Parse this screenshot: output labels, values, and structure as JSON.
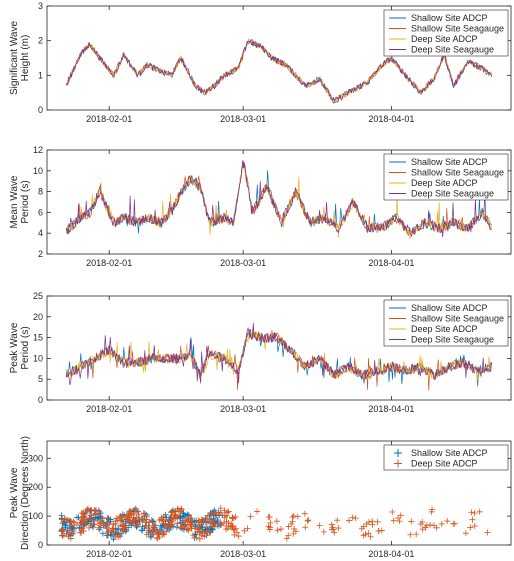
{
  "chart_data": [
    {
      "type": "line",
      "ylabel": [
        "Significant Wave",
        "Height (m)"
      ],
      "ylim": [
        0,
        3
      ],
      "yticks": [
        "0",
        "1",
        "2",
        "3"
      ],
      "xlim": [
        "2018-01-19",
        "2018-04-26"
      ],
      "xticks": [
        "2018-02-01",
        "2018-03-01",
        "2018-04-01"
      ],
      "legend": "top-right",
      "series": [
        {
          "name": "Shallow Site ADCP",
          "color": "#0072BD"
        },
        {
          "name": "Shallow Site Seagauge",
          "color": "#D95319"
        },
        {
          "name": "Deep Site ADCP",
          "color": "#EDB120"
        },
        {
          "name": "Deep Site Seagauge",
          "color": "#7E2F8E"
        }
      ],
      "x": [
        "2018-01-23",
        "2018-01-26",
        "2018-01-28",
        "2018-01-30",
        "2018-02-02",
        "2018-02-04",
        "2018-02-07",
        "2018-02-09",
        "2018-02-12",
        "2018-02-14",
        "2018-02-16",
        "2018-02-19",
        "2018-02-21",
        "2018-02-23",
        "2018-02-25",
        "2018-02-28",
        "2018-03-02",
        "2018-03-05",
        "2018-03-07",
        "2018-03-10",
        "2018-03-12",
        "2018-03-14",
        "2018-03-17",
        "2018-03-20",
        "2018-03-23",
        "2018-03-27",
        "2018-03-30",
        "2018-04-01",
        "2018-04-04",
        "2018-04-07",
        "2018-04-10",
        "2018-04-12",
        "2018-04-14",
        "2018-04-17",
        "2018-04-20",
        "2018-04-22"
      ],
      "y": [
        0.7,
        1.6,
        1.9,
        1.5,
        1.0,
        1.6,
        1.0,
        1.3,
        1.1,
        1.0,
        1.5,
        0.7,
        0.5,
        0.7,
        1.0,
        1.2,
        2.0,
        1.8,
        1.5,
        1.3,
        1.0,
        0.7,
        0.9,
        0.25,
        0.5,
        0.8,
        1.3,
        1.5,
        1.0,
        0.5,
        0.9,
        1.6,
        0.7,
        1.4,
        1.2,
        1.0
      ]
    },
    {
      "type": "line",
      "ylabel": [
        "Mean Wave",
        "Period (s)"
      ],
      "ylim": [
        2,
        12
      ],
      "yticks": [
        "2",
        "4",
        "6",
        "8",
        "10",
        "12"
      ],
      "xlim": [
        "2018-01-19",
        "2018-04-26"
      ],
      "xticks": [
        "2018-02-01",
        "2018-03-01",
        "2018-04-01"
      ],
      "legend": "top-right",
      "series": [
        {
          "name": "Shallow Site ADCP",
          "color": "#0072BD"
        },
        {
          "name": "Shallow Site Seagauge",
          "color": "#D95319"
        },
        {
          "name": "Deep Site ADCP",
          "color": "#EDB120"
        },
        {
          "name": "Deep Site Seagauge",
          "color": "#7E2F8E"
        }
      ],
      "x": [
        "2018-01-23",
        "2018-01-26",
        "2018-01-28",
        "2018-01-30",
        "2018-02-02",
        "2018-02-04",
        "2018-02-07",
        "2018-02-09",
        "2018-02-12",
        "2018-02-14",
        "2018-02-16",
        "2018-02-18",
        "2018-02-20",
        "2018-02-22",
        "2018-02-25",
        "2018-02-27",
        "2018-03-01",
        "2018-03-03",
        "2018-03-06",
        "2018-03-09",
        "2018-03-12",
        "2018-03-15",
        "2018-03-18",
        "2018-03-21",
        "2018-03-24",
        "2018-03-27",
        "2018-03-30",
        "2018-04-02",
        "2018-04-05",
        "2018-04-08",
        "2018-04-11",
        "2018-04-14",
        "2018-04-17",
        "2018-04-20",
        "2018-04-22"
      ],
      "y": [
        4.2,
        5.5,
        6.0,
        8.0,
        5.0,
        5.5,
        5.0,
        5.5,
        5.0,
        6.0,
        8.0,
        9.2,
        8.5,
        5.0,
        5.5,
        5.0,
        11.0,
        6.0,
        8.5,
        5.0,
        8.0,
        5.0,
        5.5,
        4.5,
        7.0,
        4.5,
        4.5,
        5.5,
        4.0,
        5.0,
        4.5,
        5.0,
        4.5,
        6.0,
        4.5
      ]
    },
    {
      "type": "line",
      "ylabel": [
        "Peak Wave",
        "Period (s)"
      ],
      "ylim": [
        0,
        25
      ],
      "yticks": [
        "0",
        "5",
        "10",
        "15",
        "20",
        "25"
      ],
      "xlim": [
        "2018-01-19",
        "2018-04-26"
      ],
      "xticks": [
        "2018-02-01",
        "2018-03-01",
        "2018-04-01"
      ],
      "legend": "top-right",
      "series": [
        {
          "name": "Shallow Site ADCP",
          "color": "#0072BD"
        },
        {
          "name": "Shallow Site Seagauge",
          "color": "#D95319"
        },
        {
          "name": "Deep Site ADCP",
          "color": "#EDB120"
        },
        {
          "name": "Deep Site Seagauge",
          "color": "#7E2F8E"
        }
      ],
      "x": [
        "2018-01-23",
        "2018-01-26",
        "2018-01-29",
        "2018-02-01",
        "2018-02-04",
        "2018-02-07",
        "2018-02-10",
        "2018-02-13",
        "2018-02-16",
        "2018-02-18",
        "2018-02-20",
        "2018-02-22",
        "2018-02-25",
        "2018-02-28",
        "2018-03-02",
        "2018-03-05",
        "2018-03-08",
        "2018-03-11",
        "2018-03-14",
        "2018-03-17",
        "2018-03-20",
        "2018-03-23",
        "2018-03-26",
        "2018-03-29",
        "2018-04-01",
        "2018-04-04",
        "2018-04-07",
        "2018-04-10",
        "2018-04-13",
        "2018-04-16",
        "2018-04-19",
        "2018-04-22"
      ],
      "y": [
        6,
        8,
        10,
        12,
        9,
        9,
        10,
        10,
        10,
        11,
        6,
        11,
        10,
        7,
        16,
        15,
        15,
        12,
        8,
        10,
        6,
        8,
        6,
        7,
        8,
        7,
        8,
        6,
        8,
        9,
        7,
        8
      ]
    },
    {
      "type": "scatter",
      "ylabel": [
        "Peak Wave",
        "Direction (Degrees North)"
      ],
      "ylim": [
        0,
        360
      ],
      "yticks": [
        "0",
        "100",
        "200",
        "300"
      ],
      "xlim": [
        "2018-01-19",
        "2018-04-26"
      ],
      "xticks": [
        "2018-02-01",
        "2018-03-01",
        "2018-04-01"
      ],
      "legend": "top-right",
      "series": [
        {
          "name": "Shallow Site ADCP",
          "color": "#0072BD",
          "x_range": [
            "2018-01-22",
            "2018-02-25"
          ],
          "y_range": [
            20,
            120
          ]
        },
        {
          "name": "Deep Site ADCP",
          "color": "#D95319",
          "x_range": [
            "2018-01-22",
            "2018-04-22"
          ],
          "y_range": [
            10,
            140
          ]
        }
      ]
    }
  ]
}
